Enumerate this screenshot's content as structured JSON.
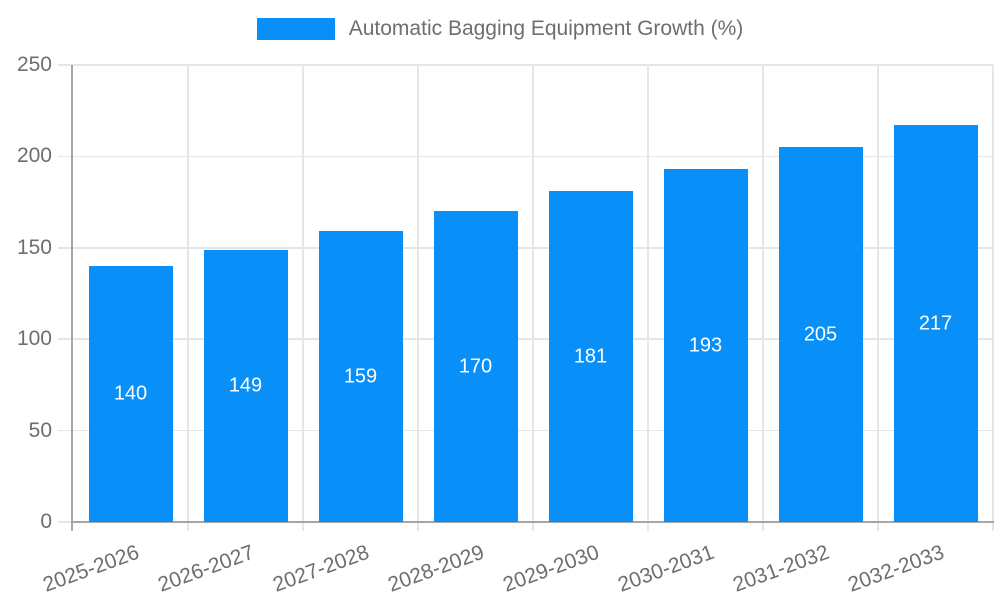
{
  "legend": {
    "label": "Automatic Bagging Equipment Growth (%)"
  },
  "chart_data": {
    "type": "bar",
    "title": "Automatic Bagging Equipment Growth (%)",
    "categories": [
      "2025-2026",
      "2026-2027",
      "2027-2028",
      "2028-2029",
      "2029-2030",
      "2030-2031",
      "2031-2032",
      "2032-2033"
    ],
    "values": [
      140,
      149,
      159,
      170,
      181,
      193,
      205,
      217
    ],
    "xlabel": "",
    "ylabel": "",
    "ylim": [
      0,
      250
    ],
    "yticks": [
      0,
      50,
      100,
      150,
      200,
      250
    ],
    "grid": true,
    "legend_position": "top-center",
    "value_labels": "inside-center",
    "colors": {
      "bar": "#0890F8",
      "value_label": "#FFFFFF",
      "axis_line": "#A6A6A6",
      "grid_line": "#E6E6E6",
      "tick_text": "#6E6E6E",
      "legend_text": "#6E6E6E",
      "background": "#FFFFFF"
    }
  }
}
